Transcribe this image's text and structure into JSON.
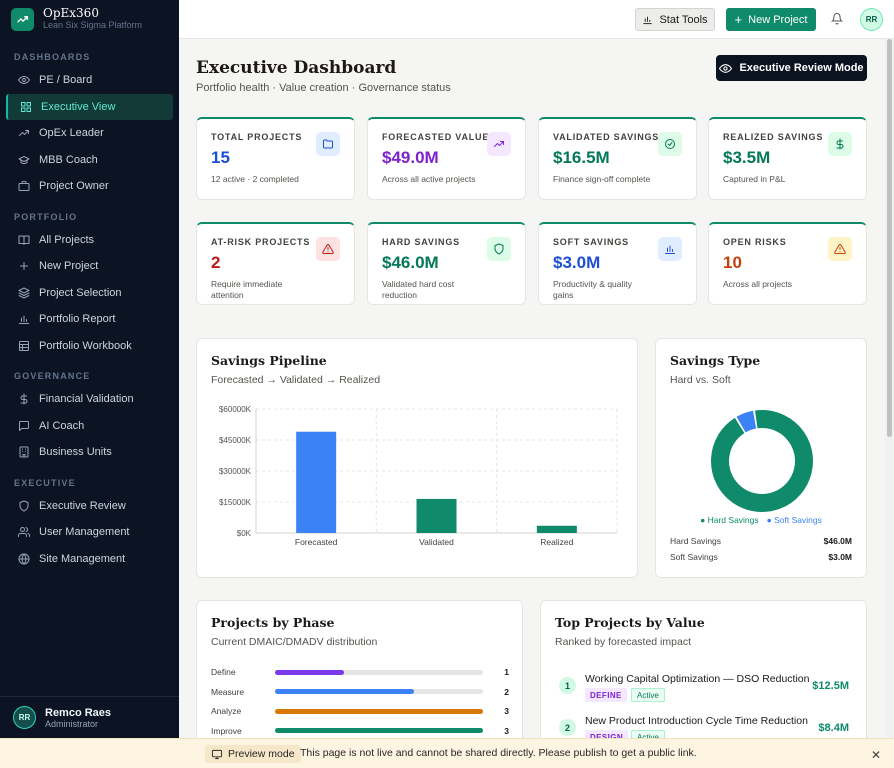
{
  "app": {
    "name": "OpEx360",
    "tagline": "Lean Six Sigma Platform"
  },
  "sidebar": {
    "sections": [
      {
        "title": "DASHBOARDS",
        "items": [
          {
            "label": "PE / Board",
            "icon": "eye-icon"
          },
          {
            "label": "Executive View",
            "icon": "grid-icon",
            "active": true
          },
          {
            "label": "OpEx Leader",
            "icon": "trending-icon"
          },
          {
            "label": "MBB Coach",
            "icon": "graduation-icon"
          },
          {
            "label": "Project Owner",
            "icon": "briefcase-icon"
          }
        ]
      },
      {
        "title": "PORTFOLIO",
        "items": [
          {
            "label": "All Projects",
            "icon": "book-icon"
          },
          {
            "label": "New Project",
            "icon": "plus-icon"
          },
          {
            "label": "Project Selection",
            "icon": "layers-icon"
          },
          {
            "label": "Portfolio Report",
            "icon": "bar-chart-icon"
          },
          {
            "label": "Portfolio Workbook",
            "icon": "table-icon"
          }
        ]
      },
      {
        "title": "GOVERNANCE",
        "items": [
          {
            "label": "Financial Validation",
            "icon": "dollar-icon"
          },
          {
            "label": "AI Coach",
            "icon": "chat-icon"
          },
          {
            "label": "Business Units",
            "icon": "building-icon"
          }
        ]
      },
      {
        "title": "EXECUTIVE",
        "items": [
          {
            "label": "Executive Review",
            "icon": "shield-icon"
          },
          {
            "label": "User Management",
            "icon": "users-icon"
          },
          {
            "label": "Site Management",
            "icon": "globe-icon"
          }
        ]
      }
    ],
    "user": {
      "initials": "RR",
      "name": "Remco Raes",
      "role": "Administrator"
    }
  },
  "topbar": {
    "stat_tools": "Stat Tools",
    "new_project": "New Project",
    "avatar": "RR"
  },
  "header": {
    "title": "Executive Dashboard",
    "subtitle": "Portfolio health · Value creation · Governance status",
    "review_button": "Executive Review Mode"
  },
  "kpis": [
    {
      "label": "TOTAL PROJECTS",
      "value": "15",
      "sub": "12 active · 2 completed",
      "color": "#1d4ed8",
      "icon": "folder-icon",
      "icon_bg": "#e0ecff",
      "icon_color": "#1d4ed8"
    },
    {
      "label": "FORECASTED VALUE",
      "value": "$49.0M",
      "sub": "Across all active projects",
      "color": "#7e22ce",
      "icon": "trending-up-icon",
      "icon_bg": "#f3e8ff",
      "icon_color": "#7e22ce"
    },
    {
      "label": "VALIDATED SAVINGS",
      "value": "$16.5M",
      "sub": "Finance sign-off complete",
      "color": "#047857",
      "icon": "check-circle-icon",
      "icon_bg": "#dcfce7",
      "icon_color": "#047857"
    },
    {
      "label": "REALIZED SAVINGS",
      "value": "$3.5M",
      "sub": "Captured in P&L",
      "color": "#047857",
      "icon": "dollar-icon",
      "icon_bg": "#dcfce7",
      "icon_color": "#047857"
    },
    {
      "label": "AT-RISK PROJECTS",
      "value": "2",
      "sub": "Require immediate attention",
      "color": "#b91c1c",
      "icon": "alert-triangle-icon",
      "icon_bg": "#fee2e2",
      "icon_color": "#b91c1c"
    },
    {
      "label": "HARD SAVINGS",
      "value": "$46.0M",
      "sub": "Validated hard cost reduction",
      "color": "#047857",
      "icon": "shield-icon",
      "icon_bg": "#dcfce7",
      "icon_color": "#047857"
    },
    {
      "label": "SOFT SAVINGS",
      "value": "$3.0M",
      "sub": "Productivity & quality gains",
      "color": "#1d4ed8",
      "icon": "bar-chart-icon",
      "icon_bg": "#e0ecff",
      "icon_color": "#1d4ed8"
    },
    {
      "label": "OPEN RISKS",
      "value": "10",
      "sub": "Across all projects",
      "color": "#c2410c",
      "icon": "warning-icon",
      "icon_bg": "#fef3c7",
      "icon_color": "#c2410c"
    }
  ],
  "pipeline": {
    "title": "Savings Pipeline",
    "subtitle": "Forecasted → Validated → Realized"
  },
  "savings_type": {
    "title": "Savings Type",
    "subtitle": "Hard vs. Soft",
    "legend": [
      "Hard Savings",
      "Soft Savings"
    ],
    "rows": [
      {
        "label": "Hard Savings",
        "value": "$46.0M"
      },
      {
        "label": "Soft Savings",
        "value": "$3.0M"
      }
    ]
  },
  "chart_data": [
    {
      "type": "bar",
      "title": "Savings Pipeline",
      "categories": [
        "Forecasted",
        "Validated",
        "Realized"
      ],
      "values": [
        49000,
        16500,
        3500
      ],
      "colors": [
        "#3b82f6",
        "#0f8a6a",
        "#0f8a6a"
      ],
      "yticks": [
        "$0K",
        "$15000K",
        "$30000K",
        "$45000K",
        "$60000K"
      ],
      "ylim": [
        0,
        60000
      ],
      "grid": true
    },
    {
      "type": "pie",
      "title": "Savings Type",
      "labels": [
        "Hard Savings",
        "Soft Savings"
      ],
      "values": [
        46.0,
        3.0
      ],
      "colors": [
        "#0f8a6a",
        "#3b82f6"
      ],
      "donut": true
    }
  ],
  "phases": {
    "title": "Projects by Phase",
    "subtitle": "Current DMAIC/DMADV distribution",
    "max": 3,
    "items": [
      {
        "name": "Define",
        "count": 1,
        "color": "#7c3aed"
      },
      {
        "name": "Measure",
        "count": 2,
        "color": "#3b82f6"
      },
      {
        "name": "Analyze",
        "count": 3,
        "color": "#d97706"
      },
      {
        "name": "Improve",
        "count": 3,
        "color": "#0f8a6a"
      }
    ]
  },
  "top_projects": {
    "title": "Top Projects by Value",
    "subtitle": "Ranked by forecasted impact",
    "items": [
      {
        "rank": "1",
        "name": "Working Capital Optimization — DSO Reduction",
        "phase": "DEFINE",
        "status": "Active",
        "value": "$12.5M",
        "phase_bg": "#f3e8ff",
        "phase_color": "#7e22ce"
      },
      {
        "rank": "2",
        "name": "New Product Introduction Cycle Time Reduction",
        "phase": "DESIGN",
        "status": "Active",
        "value": "$8.4M",
        "phase_bg": "#f3e8ff",
        "phase_color": "#7e22ce"
      }
    ]
  },
  "preview": {
    "tag": "Preview mode",
    "message": "This page is not live and cannot be shared directly. Please publish to get a public link."
  }
}
